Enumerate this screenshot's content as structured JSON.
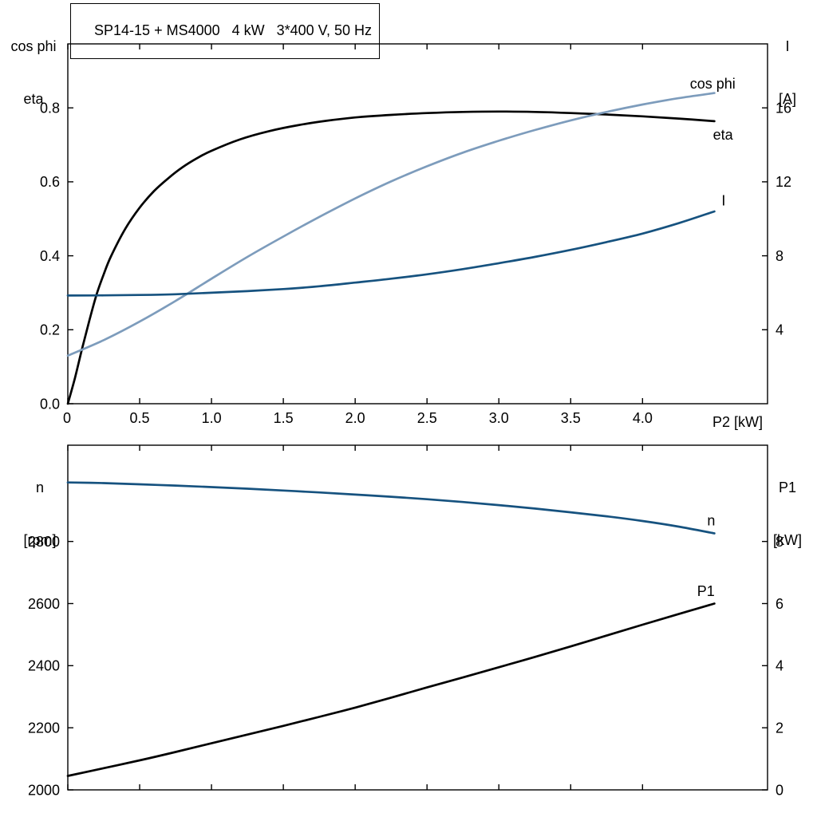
{
  "colors": {
    "black": "#000000",
    "light_blue": "#7d9cbc",
    "dark_blue": "#16527f"
  },
  "chart_data": [
    {
      "type": "line",
      "id": "top",
      "title": "SP14-15 + MS4000   4 kW   3*400 V, 50 Hz",
      "xlabel": "P2 [kW]",
      "left_axis_label": [
        "cos phi",
        "eta"
      ],
      "right_axis_label": [
        "I",
        "[A]"
      ],
      "xlim": [
        0,
        4.87
      ],
      "left_ylim": [
        0,
        0.973
      ],
      "right_ylim": [
        0,
        19.46
      ],
      "grid": false,
      "legend": "inline-curve-labels",
      "x_ticks": {
        "values": [
          0,
          0.5,
          1.0,
          1.5,
          2.0,
          2.5,
          3.0,
          3.5,
          4.0
        ],
        "labels": [
          "0",
          "0.5",
          "1.0",
          "1.5",
          "2.0",
          "2.5",
          "3.0",
          "3.5",
          "4.0"
        ]
      },
      "left_ticks": {
        "values": [
          0.0,
          0.2,
          0.4,
          0.6,
          0.8
        ],
        "labels": [
          "0.0",
          "0.2",
          "0.4",
          "0.6",
          "0.8"
        ]
      },
      "right_ticks": {
        "values": [
          4,
          8,
          12,
          16
        ],
        "labels": [
          "4",
          "8",
          "12",
          "16"
        ]
      },
      "series": [
        {
          "name": "eta",
          "label": "eta",
          "axis": "left",
          "color": "#000000",
          "label_at": {
            "x": 4.49,
            "v": 0.714
          },
          "points": [
            [
              0,
              0
            ],
            [
              0.05,
              0.07
            ],
            [
              0.1,
              0.15
            ],
            [
              0.15,
              0.225
            ],
            [
              0.2,
              0.295
            ],
            [
              0.25,
              0.35
            ],
            [
              0.3,
              0.398
            ],
            [
              0.4,
              0.473
            ],
            [
              0.5,
              0.53
            ],
            [
              0.6,
              0.575
            ],
            [
              0.7,
              0.61
            ],
            [
              0.8,
              0.64
            ],
            [
              0.9,
              0.664
            ],
            [
              1,
              0.684
            ],
            [
              1.2,
              0.715
            ],
            [
              1.4,
              0.737
            ],
            [
              1.6,
              0.753
            ],
            [
              1.8,
              0.765
            ],
            [
              2,
              0.774
            ],
            [
              2.25,
              0.781
            ],
            [
              2.5,
              0.786
            ],
            [
              2.75,
              0.789
            ],
            [
              3,
              0.79
            ],
            [
              3.25,
              0.789
            ],
            [
              3.5,
              0.786
            ],
            [
              3.75,
              0.782
            ],
            [
              4,
              0.777
            ],
            [
              4.25,
              0.771
            ],
            [
              4.5,
              0.764
            ]
          ]
        },
        {
          "name": "cos-phi",
          "label": "cos phi",
          "axis": "left",
          "color": "#7d9cbc",
          "label_at": {
            "x": 4.33,
            "v": 0.852
          },
          "points": [
            [
              0,
              0.13
            ],
            [
              0.25,
              0.172
            ],
            [
              0.5,
              0.222
            ],
            [
              0.75,
              0.278
            ],
            [
              1,
              0.338
            ],
            [
              1.25,
              0.397
            ],
            [
              1.5,
              0.452
            ],
            [
              1.75,
              0.505
            ],
            [
              2,
              0.555
            ],
            [
              2.25,
              0.601
            ],
            [
              2.5,
              0.642
            ],
            [
              2.75,
              0.679
            ],
            [
              3,
              0.711
            ],
            [
              3.25,
              0.74
            ],
            [
              3.5,
              0.766
            ],
            [
              3.75,
              0.789
            ],
            [
              4,
              0.809
            ],
            [
              4.25,
              0.826
            ],
            [
              4.5,
              0.84
            ]
          ]
        },
        {
          "name": "current",
          "label": "I",
          "axis": "right",
          "color": "#16527f",
          "label_at": {
            "x": 4.55,
            "v": 10.72
          },
          "points": [
            [
              0,
              5.85
            ],
            [
              0.25,
              5.86
            ],
            [
              0.5,
              5.88
            ],
            [
              0.75,
              5.92
            ],
            [
              1,
              6
            ],
            [
              1.25,
              6.09
            ],
            [
              1.5,
              6.2
            ],
            [
              1.75,
              6.35
            ],
            [
              2,
              6.55
            ],
            [
              2.25,
              6.76
            ],
            [
              2.5,
              7
            ],
            [
              2.75,
              7.28
            ],
            [
              3,
              7.6
            ],
            [
              3.25,
              7.94
            ],
            [
              3.5,
              8.32
            ],
            [
              3.75,
              8.74
            ],
            [
              4,
              9.2
            ],
            [
              4.25,
              9.76
            ],
            [
              4.5,
              10.4
            ]
          ]
        }
      ]
    },
    {
      "type": "line",
      "id": "bottom",
      "title": "",
      "xlabel": "",
      "left_axis_label": [
        "n",
        "[rpm]"
      ],
      "right_axis_label": [
        "P1",
        "[kW]"
      ],
      "xlim": [
        0,
        4.87
      ],
      "left_ylim": [
        2000,
        3110
      ],
      "right_ylim": [
        0,
        11.1
      ],
      "grid": false,
      "legend": "inline-curve-labels",
      "x_ticks": {
        "values": [
          0,
          0.5,
          1.0,
          1.5,
          2.0,
          2.5,
          3.0,
          3.5,
          4.0
        ],
        "labels": [
          "",
          "",
          "",
          "",
          "",
          "",
          "",
          "",
          ""
        ]
      },
      "left_ticks": {
        "values": [
          2000,
          2200,
          2400,
          2600,
          2800
        ],
        "labels": [
          "2000",
          "2200",
          "2400",
          "2600",
          "2800"
        ]
      },
      "right_ticks": {
        "values": [
          0,
          2,
          4,
          6,
          8
        ],
        "labels": [
          "0",
          "2",
          "4",
          "6",
          "8"
        ]
      },
      "series": [
        {
          "name": "speed",
          "label": "n",
          "axis": "left",
          "color": "#16527f",
          "label_at": {
            "x": 4.45,
            "v": 2852
          },
          "points": [
            [
              0,
              2990
            ],
            [
              0.25,
              2988
            ],
            [
              0.5,
              2984
            ],
            [
              0.75,
              2980
            ],
            [
              1,
              2975
            ],
            [
              1.25,
              2970
            ],
            [
              1.5,
              2964
            ],
            [
              1.75,
              2958
            ],
            [
              2,
              2951
            ],
            [
              2.25,
              2944
            ],
            [
              2.5,
              2936
            ],
            [
              2.75,
              2927
            ],
            [
              3,
              2917
            ],
            [
              3.25,
              2906
            ],
            [
              3.5,
              2894
            ],
            [
              3.75,
              2881
            ],
            [
              4,
              2866
            ],
            [
              4.25,
              2848
            ],
            [
              4.5,
              2826
            ]
          ]
        },
        {
          "name": "p1-power",
          "label": "P1",
          "axis": "right",
          "color": "#000000",
          "label_at": {
            "x": 4.38,
            "v": 6.25
          },
          "points": [
            [
              0,
              0.45
            ],
            [
              0.25,
              0.7
            ],
            [
              0.5,
              0.95
            ],
            [
              0.75,
              1.22
            ],
            [
              1,
              1.5
            ],
            [
              1.25,
              1.78
            ],
            [
              1.5,
              2.06
            ],
            [
              1.75,
              2.35
            ],
            [
              2,
              2.65
            ],
            [
              2.25,
              2.97
            ],
            [
              2.5,
              3.3
            ],
            [
              2.75,
              3.62
            ],
            [
              3,
              3.95
            ],
            [
              3.25,
              4.28
            ],
            [
              3.5,
              4.62
            ],
            [
              3.75,
              4.97
            ],
            [
              4,
              5.32
            ],
            [
              4.25,
              5.66
            ],
            [
              4.5,
              6
            ]
          ]
        }
      ]
    }
  ]
}
